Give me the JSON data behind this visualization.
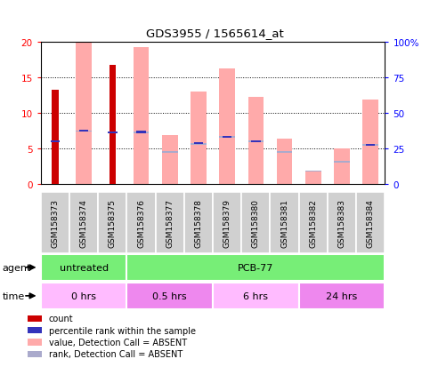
{
  "title": "GDS3955 / 1565614_at",
  "samples": [
    "GSM158373",
    "GSM158374",
    "GSM158375",
    "GSM158376",
    "GSM158377",
    "GSM158378",
    "GSM158379",
    "GSM158380",
    "GSM158381",
    "GSM158382",
    "GSM158383",
    "GSM158384"
  ],
  "count_values": [
    13.2,
    0,
    16.7,
    0,
    0,
    0,
    0,
    0,
    0,
    0,
    0,
    0
  ],
  "percentile_values": [
    6.0,
    7.5,
    7.2,
    7.3,
    0,
    5.7,
    6.6,
    6.0,
    0,
    0,
    0,
    5.5
  ],
  "value_absent": [
    0,
    20.0,
    0,
    19.2,
    6.8,
    13.0,
    16.2,
    12.2,
    6.4,
    1.7,
    5.0,
    11.8
  ],
  "rank_absent_bottom": [
    0,
    7.3,
    0,
    7.1,
    4.4,
    5.5,
    6.5,
    5.9,
    4.4,
    1.7,
    3.0,
    5.4
  ],
  "rank_absent_top": [
    0,
    7.5,
    0,
    7.3,
    4.6,
    5.7,
    6.7,
    6.1,
    4.6,
    1.9,
    3.2,
    5.6
  ],
  "ylim_left": [
    0,
    20
  ],
  "ylim_right": [
    0,
    100
  ],
  "yticks_left": [
    0,
    5,
    10,
    15,
    20
  ],
  "ytick_labels_left": [
    "0",
    "5",
    "10",
    "15",
    "20"
  ],
  "yticks_right": [
    0,
    25,
    50,
    75,
    100
  ],
  "ytick_labels_right": [
    "0",
    "25",
    "50",
    "75",
    "100%"
  ],
  "color_count": "#cc0000",
  "color_percentile": "#3333bb",
  "color_value_absent": "#ffaaaa",
  "color_rank_absent": "#aaaacc",
  "agent_groups": [
    {
      "label": "untreated",
      "start": 0,
      "end": 3,
      "color": "#77ee77"
    },
    {
      "label": "PCB-77",
      "start": 3,
      "end": 12,
      "color": "#77ee77"
    }
  ],
  "time_groups": [
    {
      "label": "0 hrs",
      "start": 0,
      "end": 3,
      "color": "#ffbbff"
    },
    {
      "label": "0.5 hrs",
      "start": 3,
      "end": 6,
      "color": "#ee88ee"
    },
    {
      "label": "6 hrs",
      "start": 6,
      "end": 9,
      "color": "#ffbbff"
    },
    {
      "label": "24 hrs",
      "start": 9,
      "end": 12,
      "color": "#ee88ee"
    }
  ],
  "legend_items": [
    {
      "color": "#cc0000",
      "label": "count"
    },
    {
      "color": "#3333bb",
      "label": "percentile rank within the sample"
    },
    {
      "color": "#ffaaaa",
      "label": "value, Detection Call = ABSENT"
    },
    {
      "color": "#aaaacc",
      "label": "rank, Detection Call = ABSENT"
    }
  ],
  "agent_label": "agent",
  "time_label": "time",
  "bg_xtick": "#cccccc"
}
